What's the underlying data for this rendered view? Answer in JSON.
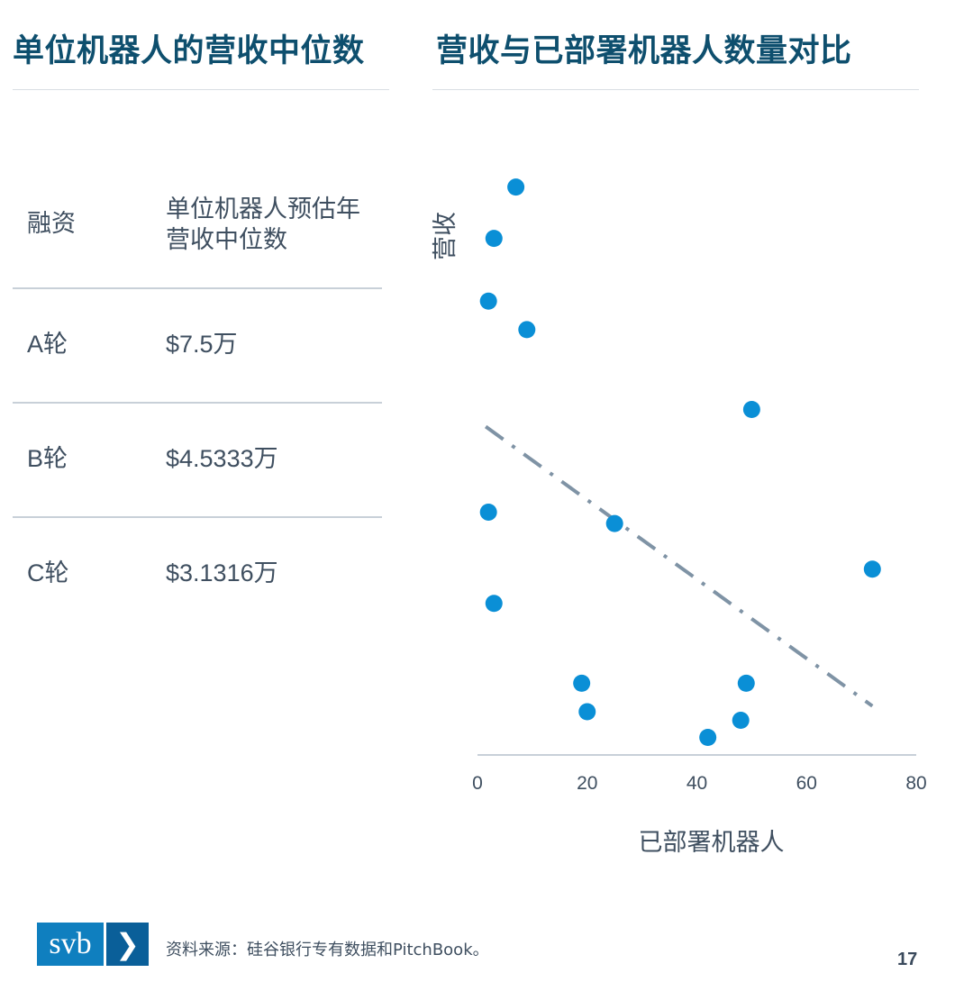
{
  "left_panel": {
    "title": "单位机器人的营收中位数",
    "table": {
      "headers": [
        "融资",
        "单位机器人预估年营收中位数"
      ],
      "rows": [
        [
          "A轮",
          "$7.5万"
        ],
        [
          "B轮",
          "$4.5333万"
        ],
        [
          "C轮",
          "$3.1316万"
        ]
      ]
    }
  },
  "right_panel": {
    "title": "营收与已部署机器人数量对比"
  },
  "chart_data": {
    "type": "scatter",
    "title": "营收与已部署机器人数量对比",
    "xlabel": "已部署机器人",
    "ylabel": "营收",
    "xlim": [
      0,
      80
    ],
    "ylim": [
      0,
      100
    ],
    "x_ticks": [
      0,
      20,
      40,
      60,
      80
    ],
    "y_ticks_shown": false,
    "points": [
      {
        "x": 7,
        "y": 98
      },
      {
        "x": 3,
        "y": 89
      },
      {
        "x": 2,
        "y": 78
      },
      {
        "x": 9,
        "y": 73
      },
      {
        "x": 50,
        "y": 59
      },
      {
        "x": 2,
        "y": 41
      },
      {
        "x": 25,
        "y": 39
      },
      {
        "x": 72,
        "y": 31
      },
      {
        "x": 3,
        "y": 25
      },
      {
        "x": 19,
        "y": 11
      },
      {
        "x": 49,
        "y": 11
      },
      {
        "x": 20,
        "y": 6
      },
      {
        "x": 48,
        "y": 4.5
      },
      {
        "x": 42,
        "y": 1.5
      }
    ],
    "trendline": {
      "style": "dash-dot",
      "from": {
        "x": 1.5,
        "y": 56
      },
      "to": {
        "x": 72,
        "y": 7
      }
    },
    "grid": false,
    "point_color": "#0a8fd6",
    "trend_color": "#7f93a5"
  },
  "footer": {
    "logo_text": "svb",
    "logo_chevron": "❯",
    "source": "资料来源：硅谷银行专有数据和PitchBook。",
    "page_number": "17"
  }
}
